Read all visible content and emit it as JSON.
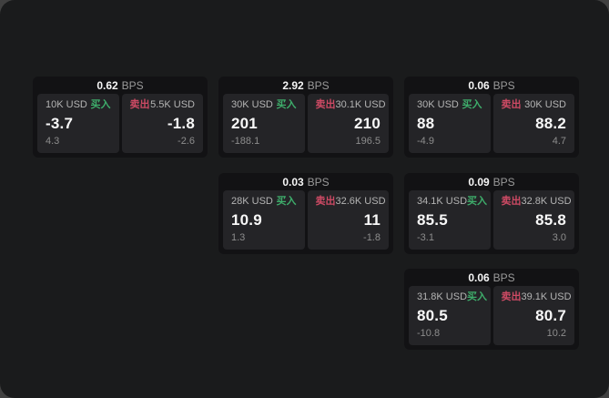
{
  "labels": {
    "bps_unit": "BPS",
    "buy": "买入",
    "sell": "卖出"
  },
  "colors": {
    "background": "#1a1b1c",
    "card": "#121214",
    "panel": "#242427",
    "buy_accent": "#3ead6b",
    "sell_accent": "#cd4a64",
    "value_text": "#f8f8f8",
    "muted_text": "#8d8d8d"
  },
  "cards": [
    {
      "bps": "0.62",
      "buy": {
        "notional": "10K USD",
        "value": "-3.7",
        "delta": "4.3"
      },
      "sell": {
        "notional": "5.5K USD",
        "value": "-1.8",
        "delta": "-2.6"
      }
    },
    {
      "bps": "2.92",
      "buy": {
        "notional": "30K USD",
        "value": "201",
        "delta": "-188.1"
      },
      "sell": {
        "notional": "30.1K USD",
        "value": "210",
        "delta": "196.5"
      }
    },
    {
      "bps": "0.06",
      "buy": {
        "notional": "30K USD",
        "value": "88",
        "delta": "-4.9"
      },
      "sell": {
        "notional": "30K USD",
        "value": "88.2",
        "delta": "4.7"
      }
    },
    {
      "bps": "0.03",
      "buy": {
        "notional": "28K USD",
        "value": "10.9",
        "delta": "1.3"
      },
      "sell": {
        "notional": "32.6K USD",
        "value": "11",
        "delta": "-1.8"
      }
    },
    {
      "bps": "0.09",
      "buy": {
        "notional": "34.1K USD",
        "value": "85.5",
        "delta": "-3.1"
      },
      "sell": {
        "notional": "32.8K USD",
        "value": "85.8",
        "delta": "3.0"
      }
    },
    {
      "bps": "0.06",
      "buy": {
        "notional": "31.8K USD",
        "value": "80.5",
        "delta": "-10.8"
      },
      "sell": {
        "notional": "39.1K USD",
        "value": "80.7",
        "delta": "10.2"
      }
    }
  ]
}
